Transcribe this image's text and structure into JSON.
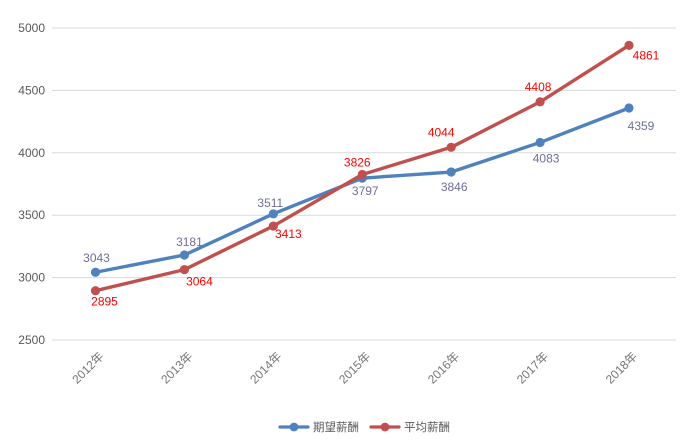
{
  "chart_data": {
    "type": "line",
    "title": "",
    "xlabel": "",
    "ylabel": "",
    "categories": [
      "2012年",
      "2013年",
      "2014年",
      "2015年",
      "2016年",
      "2017年",
      "2018年"
    ],
    "series": [
      {
        "name": "期望薪酬",
        "color": "#4F81BD",
        "label_color": "#6E6E99",
        "values": [
          3043,
          3181,
          3511,
          3797,
          3846,
          4083,
          4359
        ]
      },
      {
        "name": "平均薪酬",
        "color": "#C0504D",
        "label_color": "#FE0000",
        "values": [
          2895,
          3064,
          3413,
          3826,
          4044,
          4408,
          4861
        ]
      }
    ],
    "ylim": [
      2500,
      5000
    ],
    "ytick_step": 500,
    "ytick_labels": [
      "2500",
      "3000",
      "3500",
      "4000",
      "4500",
      "5000"
    ],
    "grid": true,
    "legend_position": "bottom"
  },
  "colors": {
    "background": "#FFFFFF",
    "gridline": "#D9D9D9",
    "y_axis_text": "#595959",
    "x_axis_text": "#757575",
    "legend_text": "#595959"
  }
}
